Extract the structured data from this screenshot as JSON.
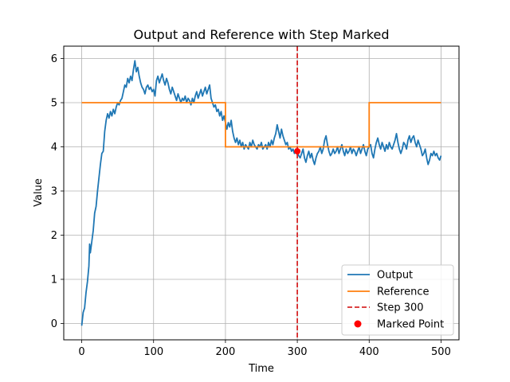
{
  "chart_data": {
    "type": "line",
    "title": "Output and Reference with Step Marked",
    "xlabel": "Time",
    "ylabel": "Value",
    "xlim": [
      -25,
      525
    ],
    "ylim": [
      -0.37,
      6.28
    ],
    "xticks": [
      0,
      100,
      200,
      300,
      400,
      500
    ],
    "yticks": [
      0,
      1,
      2,
      3,
      4,
      5,
      6
    ],
    "grid": true,
    "legend_position": "lower-right",
    "series": [
      {
        "name": "Output",
        "color": "#1f77b4",
        "points": [
          [
            0,
            -0.05
          ],
          [
            2,
            0.25
          ],
          [
            4,
            0.35
          ],
          [
            6,
            0.7
          ],
          [
            8,
            0.95
          ],
          [
            10,
            1.3
          ],
          [
            11,
            1.8
          ],
          [
            12,
            1.6
          ],
          [
            14,
            1.85
          ],
          [
            16,
            2.1
          ],
          [
            18,
            2.5
          ],
          [
            20,
            2.65
          ],
          [
            22,
            3.0
          ],
          [
            24,
            3.3
          ],
          [
            26,
            3.6
          ],
          [
            28,
            3.85
          ],
          [
            30,
            3.9
          ],
          [
            32,
            4.35
          ],
          [
            34,
            4.6
          ],
          [
            36,
            4.75
          ],
          [
            38,
            4.65
          ],
          [
            40,
            4.8
          ],
          [
            42,
            4.7
          ],
          [
            44,
            4.85
          ],
          [
            46,
            4.75
          ],
          [
            48,
            4.9
          ],
          [
            50,
            5.0
          ],
          [
            52,
            4.95
          ],
          [
            54,
            5.05
          ],
          [
            56,
            5.1
          ],
          [
            58,
            5.25
          ],
          [
            60,
            5.4
          ],
          [
            62,
            5.35
          ],
          [
            64,
            5.55
          ],
          [
            66,
            5.45
          ],
          [
            68,
            5.6
          ],
          [
            70,
            5.5
          ],
          [
            72,
            5.75
          ],
          [
            74,
            5.95
          ],
          [
            76,
            5.7
          ],
          [
            78,
            5.8
          ],
          [
            80,
            5.6
          ],
          [
            82,
            5.45
          ],
          [
            84,
            5.35
          ],
          [
            86,
            5.3
          ],
          [
            88,
            5.2
          ],
          [
            90,
            5.35
          ],
          [
            92,
            5.4
          ],
          [
            94,
            5.3
          ],
          [
            96,
            5.35
          ],
          [
            98,
            5.25
          ],
          [
            100,
            5.3
          ],
          [
            102,
            5.15
          ],
          [
            104,
            5.5
          ],
          [
            106,
            5.6
          ],
          [
            108,
            5.45
          ],
          [
            110,
            5.55
          ],
          [
            112,
            5.65
          ],
          [
            114,
            5.5
          ],
          [
            116,
            5.4
          ],
          [
            118,
            5.55
          ],
          [
            120,
            5.45
          ],
          [
            122,
            5.3
          ],
          [
            124,
            5.2
          ],
          [
            126,
            5.35
          ],
          [
            128,
            5.25
          ],
          [
            130,
            5.15
          ],
          [
            132,
            5.05
          ],
          [
            134,
            5.2
          ],
          [
            136,
            5.1
          ],
          [
            138,
            5.0
          ],
          [
            140,
            5.1
          ],
          [
            142,
            5.05
          ],
          [
            144,
            5.15
          ],
          [
            146,
            5.0
          ],
          [
            148,
            5.1
          ],
          [
            150,
            5.05
          ],
          [
            152,
            4.95
          ],
          [
            154,
            5.1
          ],
          [
            156,
            5.0
          ],
          [
            158,
            5.15
          ],
          [
            160,
            5.25
          ],
          [
            162,
            5.1
          ],
          [
            164,
            5.2
          ],
          [
            166,
            5.3
          ],
          [
            168,
            5.15
          ],
          [
            170,
            5.25
          ],
          [
            172,
            5.35
          ],
          [
            174,
            5.2
          ],
          [
            176,
            5.3
          ],
          [
            178,
            5.4
          ],
          [
            180,
            5.1
          ],
          [
            182,
            5.0
          ],
          [
            184,
            4.9
          ],
          [
            186,
            4.95
          ],
          [
            188,
            4.8
          ],
          [
            190,
            4.85
          ],
          [
            192,
            4.7
          ],
          [
            194,
            4.8
          ],
          [
            196,
            4.6
          ],
          [
            198,
            4.7
          ],
          [
            200,
            4.55
          ],
          [
            202,
            4.4
          ],
          [
            204,
            4.55
          ],
          [
            206,
            4.45
          ],
          [
            208,
            4.6
          ],
          [
            210,
            4.35
          ],
          [
            212,
            4.2
          ],
          [
            214,
            4.1
          ],
          [
            216,
            4.2
          ],
          [
            218,
            4.05
          ],
          [
            220,
            4.15
          ],
          [
            222,
            4.0
          ],
          [
            224,
            4.1
          ],
          [
            226,
            3.95
          ],
          [
            228,
            4.05
          ],
          [
            230,
            4.0
          ],
          [
            232,
            3.95
          ],
          [
            234,
            4.1
          ],
          [
            236,
            4.0
          ],
          [
            238,
            4.15
          ],
          [
            240,
            4.05
          ],
          [
            242,
            4.0
          ],
          [
            244,
            3.95
          ],
          [
            246,
            4.05
          ],
          [
            248,
            4.0
          ],
          [
            250,
            4.1
          ],
          [
            252,
            3.95
          ],
          [
            254,
            4.0
          ],
          [
            256,
            4.05
          ],
          [
            258,
            3.95
          ],
          [
            260,
            4.1
          ],
          [
            262,
            4.0
          ],
          [
            264,
            4.15
          ],
          [
            266,
            4.05
          ],
          [
            268,
            4.2
          ],
          [
            270,
            4.3
          ],
          [
            272,
            4.5
          ],
          [
            274,
            4.35
          ],
          [
            276,
            4.2
          ],
          [
            278,
            4.4
          ],
          [
            280,
            4.25
          ],
          [
            282,
            4.15
          ],
          [
            284,
            4.05
          ],
          [
            286,
            4.1
          ],
          [
            288,
            3.95
          ],
          [
            290,
            4.0
          ],
          [
            292,
            3.9
          ],
          [
            294,
            3.95
          ],
          [
            296,
            3.85
          ],
          [
            298,
            3.95
          ],
          [
            300,
            3.9
          ],
          [
            302,
            3.8
          ],
          [
            304,
            3.75
          ],
          [
            306,
            3.85
          ],
          [
            308,
            3.95
          ],
          [
            310,
            3.75
          ],
          [
            312,
            3.65
          ],
          [
            314,
            3.8
          ],
          [
            316,
            3.9
          ],
          [
            318,
            3.75
          ],
          [
            320,
            3.85
          ],
          [
            322,
            3.7
          ],
          [
            324,
            3.6
          ],
          [
            326,
            3.75
          ],
          [
            328,
            3.85
          ],
          [
            330,
            3.9
          ],
          [
            332,
            4.0
          ],
          [
            334,
            3.85
          ],
          [
            336,
            3.95
          ],
          [
            338,
            4.15
          ],
          [
            340,
            4.25
          ],
          [
            342,
            4.05
          ],
          [
            344,
            3.9
          ],
          [
            346,
            3.8
          ],
          [
            348,
            3.85
          ],
          [
            350,
            3.95
          ],
          [
            352,
            3.85
          ],
          [
            354,
            3.9
          ],
          [
            356,
            4.0
          ],
          [
            358,
            3.85
          ],
          [
            360,
            3.95
          ],
          [
            362,
            4.05
          ],
          [
            364,
            3.9
          ],
          [
            366,
            3.8
          ],
          [
            368,
            3.95
          ],
          [
            370,
            3.85
          ],
          [
            372,
            3.9
          ],
          [
            374,
            4.0
          ],
          [
            376,
            3.85
          ],
          [
            378,
            3.95
          ],
          [
            380,
            3.9
          ],
          [
            382,
            3.8
          ],
          [
            384,
            3.9
          ],
          [
            386,
            4.0
          ],
          [
            388,
            3.85
          ],
          [
            390,
            3.95
          ],
          [
            392,
            4.05
          ],
          [
            394,
            3.9
          ],
          [
            396,
            3.8
          ],
          [
            398,
            3.95
          ],
          [
            400,
            4.0
          ],
          [
            402,
            4.05
          ],
          [
            404,
            3.85
          ],
          [
            406,
            3.75
          ],
          [
            408,
            3.95
          ],
          [
            410,
            4.1
          ],
          [
            412,
            4.2
          ],
          [
            414,
            4.05
          ],
          [
            416,
            3.95
          ],
          [
            418,
            4.1
          ],
          [
            420,
            4.0
          ],
          [
            422,
            3.9
          ],
          [
            424,
            4.05
          ],
          [
            426,
            3.95
          ],
          [
            428,
            4.1
          ],
          [
            430,
            4.0
          ],
          [
            432,
            3.95
          ],
          [
            434,
            4.05
          ],
          [
            436,
            4.15
          ],
          [
            438,
            4.3
          ],
          [
            440,
            4.1
          ],
          [
            442,
            3.95
          ],
          [
            444,
            3.85
          ],
          [
            446,
            3.95
          ],
          [
            448,
            4.1
          ],
          [
            450,
            4.05
          ],
          [
            452,
            3.95
          ],
          [
            454,
            4.15
          ],
          [
            456,
            4.25
          ],
          [
            458,
            4.1
          ],
          [
            460,
            4.2
          ],
          [
            462,
            4.25
          ],
          [
            464,
            4.1
          ],
          [
            466,
            4.0
          ],
          [
            468,
            4.15
          ],
          [
            470,
            4.05
          ],
          [
            472,
            3.95
          ],
          [
            474,
            3.8
          ],
          [
            476,
            3.85
          ],
          [
            478,
            3.95
          ],
          [
            480,
            3.75
          ],
          [
            482,
            3.6
          ],
          [
            484,
            3.7
          ],
          [
            486,
            3.85
          ],
          [
            488,
            3.8
          ],
          [
            490,
            3.9
          ],
          [
            492,
            3.8
          ],
          [
            494,
            3.85
          ],
          [
            496,
            3.75
          ],
          [
            498,
            3.7
          ],
          [
            500,
            3.8
          ]
        ]
      },
      {
        "name": "Reference",
        "color": "#ff7f0e",
        "points": [
          [
            0,
            5
          ],
          [
            200,
            5
          ],
          [
            200,
            4
          ],
          [
            400,
            4
          ],
          [
            400,
            5
          ],
          [
            500,
            5
          ]
        ]
      }
    ],
    "vline": {
      "name": "Step 300",
      "x": 300,
      "color": "#d62728",
      "style": "dashed"
    },
    "marker": {
      "name": "Marked Point",
      "x": 300,
      "y": 3.9,
      "color": "#ff0000"
    }
  }
}
